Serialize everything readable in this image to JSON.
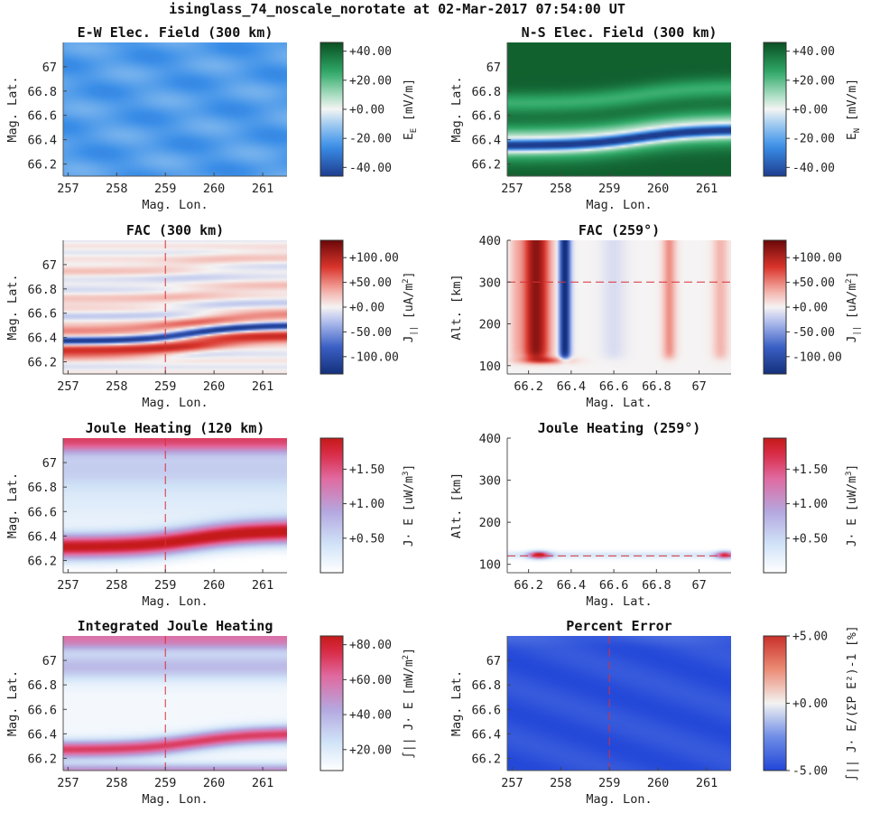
{
  "figure": {
    "title": "isinglass_74_noscale_norotate at 02-Mar-2017 07:54:00 UT"
  },
  "colors": {
    "rdbu_dark_blue": "#1f3a8f",
    "rdbu_blue": "#3d79d9",
    "white": "#f5f5f5",
    "rdbu_red": "#d23a32",
    "rdbu_dark_red": "#7a0c0c",
    "green_dark": "#0b5a2a",
    "sky_blue": "#4aa8ee",
    "pink_red": "#d7304f",
    "lavender": "#b9a2dc"
  },
  "chart_data": [
    {
      "id": "ew",
      "type": "heatmap",
      "title": "E-W Elec. Field (300 km)",
      "xlabel": "Mag. Lon.",
      "ylabel": "Mag. Lat.",
      "xlim": [
        256.9,
        261.5
      ],
      "ylim": [
        66.1,
        67.2
      ],
      "xticks": [
        "257",
        "258",
        "259",
        "260",
        "261"
      ],
      "xtick_values": [
        257,
        258,
        259,
        260,
        261
      ],
      "yticks": [
        "66.2",
        "66.4",
        "66.6",
        "66.8",
        "67"
      ],
      "ytick_values": [
        66.2,
        66.4,
        66.6,
        66.8,
        67
      ],
      "field": "ew",
      "cmap": "bwg",
      "colorbar": {
        "ticks": [
          "-40.00",
          "-20.00",
          "+0.00",
          "+20.00",
          "+40.00"
        ],
        "tick_values": [
          -40,
          -20,
          0,
          20,
          40
        ],
        "range": [
          -46,
          46
        ],
        "label_main": "E",
        "label_sub": "E",
        "label_unit": "[mV/m]"
      },
      "guide": null
    },
    {
      "id": "ns",
      "type": "heatmap",
      "title": "N-S Elec. Field (300 km)",
      "xlabel": "Mag. Lon.",
      "ylabel": "Mag. Lat.",
      "xlim": [
        256.9,
        261.5
      ],
      "ylim": [
        66.1,
        67.2
      ],
      "xticks": [
        "257",
        "258",
        "259",
        "260",
        "261"
      ],
      "xtick_values": [
        257,
        258,
        259,
        260,
        261
      ],
      "yticks": [
        "66.2",
        "66.4",
        "66.6",
        "66.8",
        "67"
      ],
      "ytick_values": [
        66.2,
        66.4,
        66.6,
        66.8,
        67
      ],
      "field": "ns",
      "cmap": "bwg",
      "colorbar": {
        "ticks": [
          "-40.00",
          "-20.00",
          "+0.00",
          "+20.00",
          "+40.00"
        ],
        "tick_values": [
          -40,
          -20,
          0,
          20,
          40
        ],
        "range": [
          -46,
          46
        ],
        "label_main": "E",
        "label_sub": "N",
        "label_unit": "[mV/m]"
      },
      "guide": null
    },
    {
      "id": "fac300",
      "type": "heatmap",
      "title": "FAC (300 km)",
      "xlabel": "Mag. Lon.",
      "ylabel": "Mag. Lat.",
      "xlim": [
        256.9,
        261.5
      ],
      "ylim": [
        66.1,
        67.2
      ],
      "xticks": [
        "257",
        "258",
        "259",
        "260",
        "261"
      ],
      "xtick_values": [
        257,
        258,
        259,
        260,
        261
      ],
      "yticks": [
        "66.2",
        "66.4",
        "66.6",
        "66.8",
        "67"
      ],
      "ytick_values": [
        66.2,
        66.4,
        66.6,
        66.8,
        67
      ],
      "field": "fac300",
      "cmap": "rdbu",
      "colorbar": {
        "ticks": [
          "-100.00",
          "-50.00",
          "+0.00",
          "+50.00",
          "+100.00"
        ],
        "tick_values": [
          -100,
          -50,
          0,
          50,
          100
        ],
        "range": [
          -135,
          135
        ],
        "label_main": "J",
        "label_sub": "||",
        "label_unit": "[uA/m",
        "label_sup": "2",
        "label_tail": "]"
      },
      "guide": {
        "orientation": "vertical",
        "value": 259
      }
    },
    {
      "id": "fac259",
      "type": "heatmap",
      "title": "FAC (259°)",
      "xlabel": "Mag. Lat.",
      "ylabel": "Alt. [km]",
      "xlim": [
        66.1,
        67.15
      ],
      "ylim": [
        80,
        400
      ],
      "xticks": [
        "66.2",
        "66.4",
        "66.6",
        "66.8",
        "67"
      ],
      "xtick_values": [
        66.2,
        66.4,
        66.6,
        66.8,
        67
      ],
      "yticks": [
        "100",
        "200",
        "300",
        "400"
      ],
      "ytick_values": [
        100,
        200,
        300,
        400
      ],
      "field": "fac259",
      "cmap": "rdbu",
      "colorbar": {
        "ticks": [
          "-100.00",
          "-50.00",
          "+0.00",
          "+50.00",
          "+100.00"
        ],
        "tick_values": [
          -100,
          -50,
          0,
          50,
          100
        ],
        "range": [
          -135,
          135
        ],
        "label_main": "J",
        "label_sub": "||",
        "label_unit": "[uA/m",
        "label_sup": "2",
        "label_tail": "]"
      },
      "guide": {
        "orientation": "horizontal",
        "value": 300
      }
    },
    {
      "id": "jh120",
      "type": "heatmap",
      "title": "Joule Heating (120 km)",
      "xlabel": "Mag. Lon.",
      "ylabel": "Mag. Lat.",
      "xlim": [
        256.9,
        261.5
      ],
      "ylim": [
        66.1,
        67.2
      ],
      "xticks": [
        "257",
        "258",
        "259",
        "260",
        "261"
      ],
      "xtick_values": [
        257,
        258,
        259,
        260,
        261
      ],
      "yticks": [
        "66.2",
        "66.4",
        "66.6",
        "66.8",
        "67"
      ],
      "ytick_values": [
        66.2,
        66.4,
        66.6,
        66.8,
        67
      ],
      "field": "jh120",
      "cmap": "heat",
      "colorbar": {
        "ticks": [
          "+0.50",
          "+1.00",
          "+1.50"
        ],
        "tick_values": [
          0.5,
          1.0,
          1.5
        ],
        "range": [
          0,
          1.95
        ],
        "label_main": "J· E",
        "label_sub": "",
        "label_unit": "[uW/m",
        "label_sup": "3",
        "label_tail": "]"
      },
      "guide": {
        "orientation": "vertical",
        "value": 259
      }
    },
    {
      "id": "jh259",
      "type": "heatmap",
      "title": "Joule Heating (259°)",
      "xlabel": "Mag. Lat.",
      "ylabel": "Alt. [km]",
      "xlim": [
        66.1,
        67.15
      ],
      "ylim": [
        80,
        400
      ],
      "xticks": [
        "66.2",
        "66.4",
        "66.6",
        "66.8",
        "67"
      ],
      "xtick_values": [
        66.2,
        66.4,
        66.6,
        66.8,
        67
      ],
      "yticks": [
        "100",
        "200",
        "300",
        "400"
      ],
      "ytick_values": [
        100,
        200,
        300,
        400
      ],
      "field": "jh259",
      "cmap": "heat",
      "colorbar": {
        "ticks": [
          "+0.50",
          "+1.00",
          "+1.50"
        ],
        "tick_values": [
          0.5,
          1.0,
          1.5
        ],
        "range": [
          0,
          1.95
        ],
        "label_main": "J· E",
        "label_sub": "",
        "label_unit": "[uW/m",
        "label_sup": "3",
        "label_tail": "]"
      },
      "guide": {
        "orientation": "horizontal",
        "value": 120
      }
    },
    {
      "id": "ijh",
      "type": "heatmap",
      "title": "Integrated Joule Heating",
      "xlabel": "Mag. Lon.",
      "ylabel": "Mag. Lat.",
      "xlim": [
        256.9,
        261.5
      ],
      "ylim": [
        66.1,
        67.2
      ],
      "xticks": [
        "257",
        "258",
        "259",
        "260",
        "261"
      ],
      "xtick_values": [
        257,
        258,
        259,
        260,
        261
      ],
      "yticks": [
        "66.2",
        "66.4",
        "66.6",
        "66.8",
        "67"
      ],
      "ytick_values": [
        66.2,
        66.4,
        66.6,
        66.8,
        67
      ],
      "field": "ijh",
      "cmap": "heat",
      "colorbar": {
        "ticks": [
          "+20.00",
          "+40.00",
          "+60.00",
          "+80.00"
        ],
        "tick_values": [
          20,
          40,
          60,
          80
        ],
        "range": [
          8,
          85
        ],
        "label_main": "∫|| J· E",
        "label_sub": "",
        "label_unit": "[mW/m",
        "label_sup": "2",
        "label_tail": "]"
      },
      "guide": {
        "orientation": "vertical",
        "value": 259
      }
    },
    {
      "id": "perr",
      "type": "heatmap",
      "title": "Percent Error",
      "xlabel": "Mag. Lon.",
      "ylabel": "Mag. Lat.",
      "xlim": [
        256.9,
        261.5
      ],
      "ylim": [
        66.1,
        67.2
      ],
      "xticks": [
        "257",
        "258",
        "259",
        "260",
        "261"
      ],
      "xtick_values": [
        257,
        258,
        259,
        260,
        261
      ],
      "yticks": [
        "66.2",
        "66.4",
        "66.6",
        "66.8",
        "67"
      ],
      "ytick_values": [
        66.2,
        66.4,
        66.6,
        66.8,
        67
      ],
      "field": "perr",
      "cmap": "coolwarm",
      "colorbar": {
        "ticks": [
          "-5.00",
          "+0.00",
          "+5.00"
        ],
        "tick_values": [
          -5,
          0,
          5
        ],
        "range": [
          -5,
          5
        ],
        "label_main": "∫|| J· E/(ΣP E²)-1 [%]",
        "label_sub": "",
        "label_unit": "",
        "label_sup": "",
        "label_tail": ""
      },
      "guide": {
        "orientation": "vertical",
        "value": 259
      }
    }
  ]
}
